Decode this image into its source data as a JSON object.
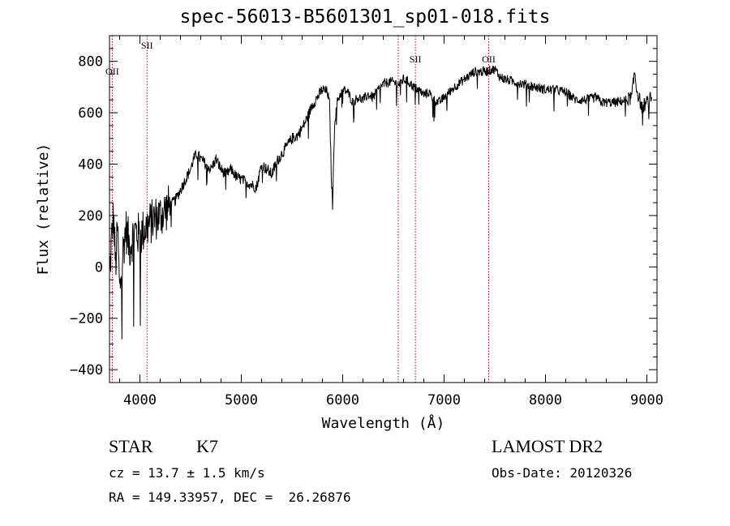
{
  "title": "spec-56013-B5601301_sp01-018.fits",
  "info": {
    "class": "STAR",
    "subclass": "K7",
    "survey": "LAMOST DR2",
    "cz": "cz = 13.7 ± 1.5 km/s",
    "obs_date": "Obs-Date: 20120326",
    "radec": "RA = 149.33957, DEC =  26.26876"
  },
  "chart_data": {
    "type": "line",
    "title": "spec-56013-B5601301_sp01-018.fits",
    "xlabel": "Wavelength (Å)",
    "ylabel": "Flux (relative)",
    "xlim": [
      3700,
      9100
    ],
    "ylim": [
      -450,
      900
    ],
    "x_ticks": [
      4000,
      5000,
      6000,
      7000,
      8000,
      9000
    ],
    "x_tick_labels": [
      "4000",
      "5000",
      "6000",
      "7000",
      "8000",
      "9000"
    ],
    "x_minor_step": 200,
    "y_ticks": [
      -400,
      -200,
      0,
      200,
      400,
      600,
      800
    ],
    "y_tick_labels": [
      "−400",
      "−200",
      "0",
      "200",
      "400",
      "600",
      "800"
    ],
    "y_minor_step": 50,
    "grid": false,
    "line_color": "#000000",
    "line_markers": [
      {
        "wavelength": 3727,
        "label": "OII"
      },
      {
        "wavelength": 4070,
        "label": "SII"
      },
      {
        "wavelength": 6548,
        "label": ""
      },
      {
        "wavelength": 6717,
        "label": "SII"
      },
      {
        "wavelength": 7440,
        "label": "OII"
      }
    ],
    "marker_color": "#aa0000",
    "series": [
      {
        "x": [
          3700,
          3720,
          3740,
          3760,
          3780,
          3800,
          3830,
          3860,
          3900,
          3950,
          4000,
          4050,
          4100,
          4150,
          4200,
          4250,
          4300,
          4350,
          4400,
          4450,
          4500,
          4530,
          4560,
          4600,
          4650,
          4700,
          4750,
          4800,
          4850,
          4900,
          4950,
          5000,
          5050,
          5100,
          5150,
          5200,
          5250,
          5300,
          5350,
          5400,
          5450,
          5500,
          5550,
          5600,
          5650,
          5700,
          5750,
          5800,
          5850,
          5870,
          5890,
          5900,
          5920,
          5950,
          6000,
          6050,
          6100,
          6150,
          6200,
          6250,
          6300,
          6350,
          6400,
          6450,
          6500,
          6550,
          6600,
          6650,
          6700,
          6750,
          6800,
          6850,
          6900,
          6950,
          7000,
          7100,
          7200,
          7300,
          7400,
          7450,
          7500,
          7550,
          7600,
          7700,
          7800,
          7900,
          8000,
          8100,
          8200,
          8300,
          8400,
          8500,
          8550,
          8600,
          8700,
          8800,
          8850,
          8880,
          8900,
          8950,
          9000,
          9050
        ],
        "y": [
          -50,
          100,
          200,
          0,
          150,
          -100,
          50,
          150,
          80,
          140,
          120,
          150,
          170,
          190,
          200,
          220,
          240,
          260,
          300,
          340,
          380,
          420,
          440,
          420,
          400,
          380,
          420,
          380,
          360,
          380,
          350,
          340,
          330,
          320,
          310,
          400,
          380,
          360,
          410,
          440,
          470,
          500,
          510,
          540,
          580,
          630,
          660,
          690,
          680,
          630,
          320,
          240,
          560,
          650,
          690,
          680,
          640,
          660,
          650,
          670,
          660,
          690,
          710,
          720,
          720,
          710,
          730,
          720,
          700,
          690,
          670,
          680,
          650,
          640,
          660,
          700,
          730,
          760,
          760,
          765,
          770,
          740,
          730,
          720,
          710,
          700,
          690,
          690,
          680,
          650,
          650,
          660,
          640,
          640,
          640,
          650,
          660,
          760,
          690,
          620,
          640,
          660
        ]
      }
    ]
  }
}
